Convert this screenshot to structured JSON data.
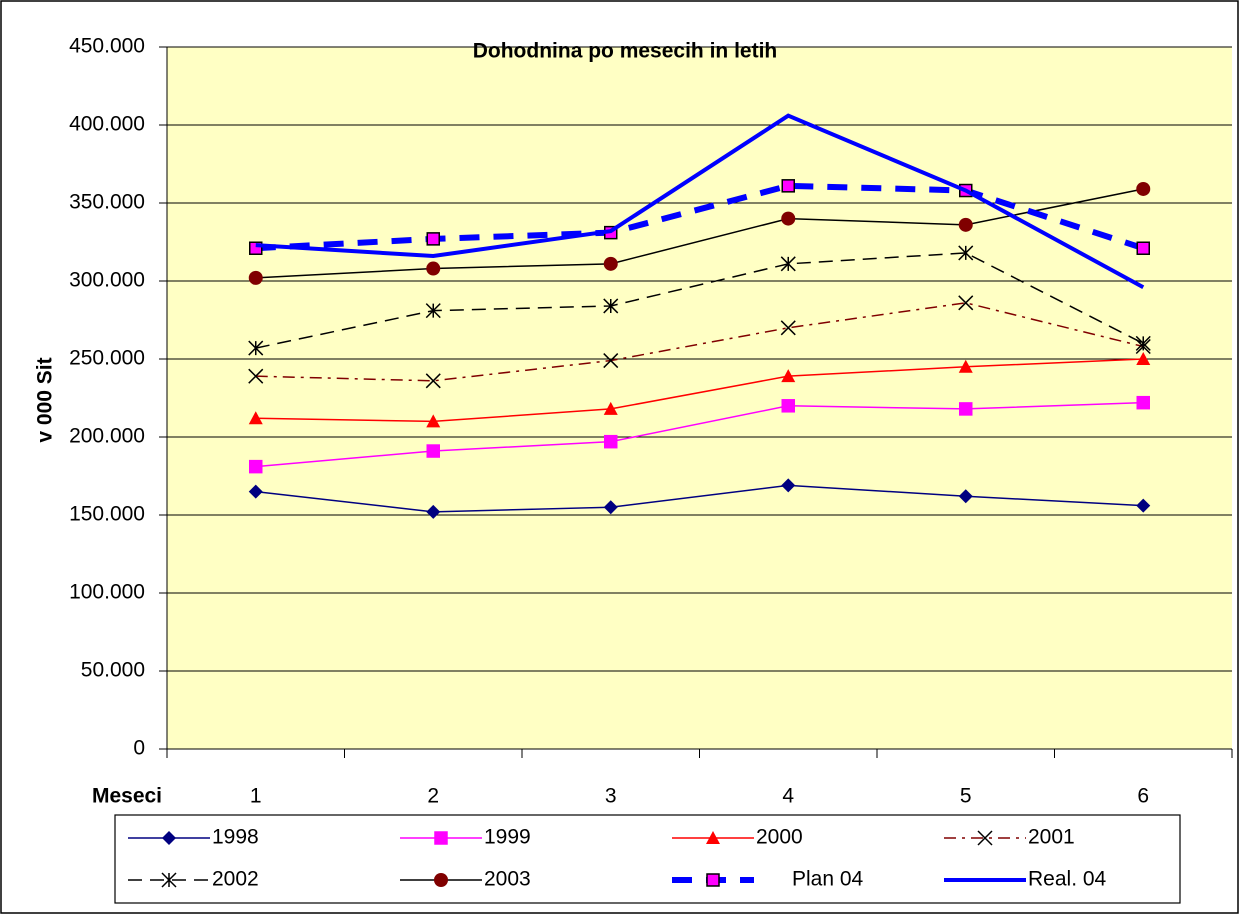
{
  "chart_data": {
    "type": "line",
    "title": "Dohodnina po mesecih in letih",
    "y_label": "v 000 Sit",
    "x_label": "Meseci",
    "categories": [
      "1",
      "2",
      "3",
      "4",
      "5",
      "6"
    ],
    "ylim": [
      0,
      450000
    ],
    "yticks": [
      0,
      {
        "value": 50000,
        "label": "50.000"
      },
      {
        "value": 100000,
        "label": "100.000"
      },
      {
        "value": 150000,
        "label": "150.000"
      },
      {
        "value": 200000,
        "label": "200.000"
      },
      {
        "value": 250000,
        "label": "250.000"
      },
      {
        "value": 300000,
        "label": "300.000"
      },
      {
        "value": 350000,
        "label": "350.000"
      },
      {
        "value": 400000,
        "label": "400.000"
      },
      {
        "value": 450000,
        "label": "450.000"
      }
    ],
    "grid": true,
    "legend": "bottom",
    "series": [
      {
        "name": "1998",
        "color": "#000080",
        "marker": "diamond",
        "dash": "solid",
        "values": [
          165000,
          152000,
          155000,
          169000,
          162000,
          156000
        ]
      },
      {
        "name": "1999",
        "color": "#ff00ff",
        "marker": "square",
        "dash": "solid",
        "values": [
          181000,
          191000,
          197000,
          220000,
          218000,
          222000
        ]
      },
      {
        "name": "2000",
        "color": "#ff0000",
        "marker": "triangle",
        "dash": "solid",
        "values": [
          212000,
          210000,
          218000,
          239000,
          245000,
          250000
        ]
      },
      {
        "name": "2001",
        "color": "#800000",
        "marker": "x",
        "dash": "dashdot",
        "values": [
          239000,
          236000,
          249000,
          270000,
          286000,
          258000
        ]
      },
      {
        "name": "2002",
        "color": "#000000",
        "marker": "star",
        "dash": "dash",
        "values": [
          257000,
          281000,
          284000,
          311000,
          318000,
          260000
        ]
      },
      {
        "name": "2003",
        "color": "#000000",
        "marker": "circle",
        "marker_color": "#800000",
        "dash": "solid",
        "values": [
          302000,
          308000,
          311000,
          340000,
          336000,
          359000
        ]
      },
      {
        "name": "Plan 04",
        "color": "#0000ff",
        "marker": "square",
        "marker_color": "#ff00ff",
        "dash": "bigdash",
        "values": [
          321000,
          327000,
          331000,
          361000,
          358000,
          321000
        ]
      },
      {
        "name": "Real. 04",
        "color": "#0000ff",
        "marker": "none",
        "dash": "thick",
        "values": [
          323000,
          316000,
          332000,
          406000,
          358000,
          296000
        ]
      }
    ]
  }
}
